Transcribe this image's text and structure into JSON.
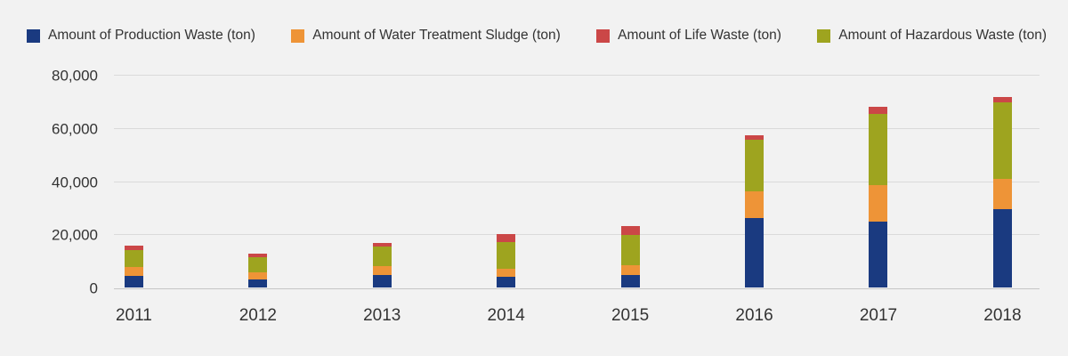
{
  "chart_data": {
    "type": "bar",
    "variant": "stacked-vertical",
    "title": "",
    "categories": [
      "2011",
      "2012",
      "2013",
      "2014",
      "2015",
      "2016",
      "2017",
      "2018"
    ],
    "series": [
      {
        "key": "production-waste",
        "name": "Amount of Production Waste (ton)",
        "color": "#1a3a80",
        "values": [
          4500,
          3000,
          4700,
          3900,
          4700,
          26000,
          24700,
          29500
        ]
      },
      {
        "key": "water-treatment-sludge",
        "name": "Amount of Water Treatment Sludge (ton)",
        "color": "#ee9437",
        "values": [
          3350,
          2800,
          3400,
          3000,
          3700,
          10200,
          13900,
          11500
        ]
      },
      {
        "key": "life-waste",
        "name": "Amount of Life Waste (ton)",
        "color": "#cb4747",
        "values": [
          1550,
          1350,
          1450,
          3000,
          3200,
          1900,
          2800,
          1900
        ]
      },
      {
        "key": "hazardous-waste",
        "name": "Amount of Hazardous Waste (ton)",
        "color": "#9ea41f",
        "values": [
          6250,
          5600,
          7300,
          10300,
          11400,
          19300,
          26700,
          28800
        ]
      }
    ],
    "stack_order_bottom_to_top": [
      "production-waste",
      "water-treatment-sludge",
      "hazardous-waste",
      "life-waste"
    ],
    "xlabel": "",
    "ylabel": "",
    "y_axis": {
      "min": 0,
      "max": 80000,
      "tick_interval": 20000,
      "tick_labels": [
        "0",
        "20,000",
        "40,000",
        "60,000",
        "80,000"
      ],
      "tick_values": [
        0,
        20000,
        40000,
        60000,
        80000
      ]
    },
    "grid": true,
    "legend_position": "top",
    "background_color": "#f2f2f2",
    "gridline_color": "#dadada",
    "axis_line_color": "#c6c6c6",
    "text_color": "#333333"
  }
}
